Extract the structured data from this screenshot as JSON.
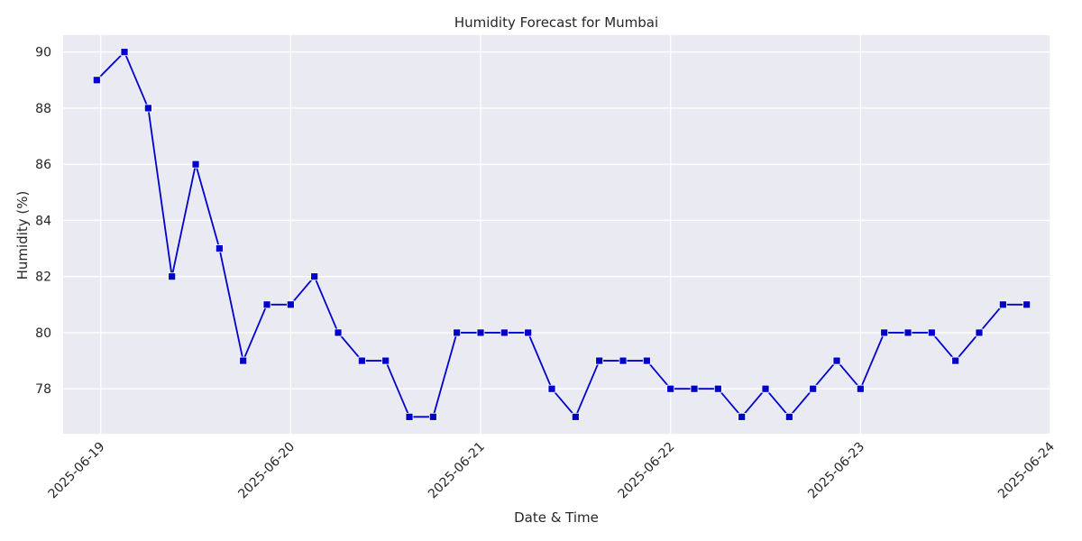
{
  "chart_data": {
    "type": "line",
    "title": "Humidity Forecast for Mumbai",
    "xlabel": "Date & Time",
    "ylabel": "Humidity (%)",
    "x_tick_labels": [
      "2025-06-19",
      "2025-06-20",
      "2025-06-21",
      "2025-06-22",
      "2025-06-23",
      "2025-06-24"
    ],
    "y_ticks": [
      78,
      80,
      82,
      84,
      86,
      88,
      90
    ],
    "xlim": [
      "2025-06-18 19:15",
      "2025-06-24 00:00"
    ],
    "ylim": [
      76.4,
      90.6
    ],
    "grid": true,
    "series_color": "#0000cc",
    "marker_color": "#0000cc",
    "series": [
      {
        "x": [
          "2025-06-18 23:30",
          "2025-06-19 03:00",
          "2025-06-19 06:00",
          "2025-06-19 09:00",
          "2025-06-19 12:00",
          "2025-06-19 15:00",
          "2025-06-19 18:00",
          "2025-06-19 21:00",
          "2025-06-20 00:00",
          "2025-06-20 03:00",
          "2025-06-20 06:00",
          "2025-06-20 09:00",
          "2025-06-20 12:00",
          "2025-06-20 15:00",
          "2025-06-20 18:00",
          "2025-06-20 21:00",
          "2025-06-21 00:00",
          "2025-06-21 03:00",
          "2025-06-21 06:00",
          "2025-06-21 09:00",
          "2025-06-21 12:00",
          "2025-06-21 15:00",
          "2025-06-21 18:00",
          "2025-06-21 21:00",
          "2025-06-22 00:00",
          "2025-06-22 03:00",
          "2025-06-22 06:00",
          "2025-06-22 09:00",
          "2025-06-22 12:00",
          "2025-06-22 15:00",
          "2025-06-22 18:00",
          "2025-06-22 21:00",
          "2025-06-23 00:00",
          "2025-06-23 03:00",
          "2025-06-23 06:00",
          "2025-06-23 09:00",
          "2025-06-23 12:00",
          "2025-06-23 15:00",
          "2025-06-23 18:00",
          "2025-06-23 21:00"
        ],
        "values": [
          89,
          90,
          88,
          82,
          86,
          83,
          79,
          81,
          81,
          82,
          80,
          79,
          79,
          77,
          77,
          80,
          80,
          80,
          80,
          78,
          77,
          79,
          79,
          79,
          78,
          78,
          78,
          77,
          78,
          77,
          78,
          79,
          78,
          80,
          80,
          80,
          79,
          80,
          81,
          81
        ]
      }
    ]
  }
}
